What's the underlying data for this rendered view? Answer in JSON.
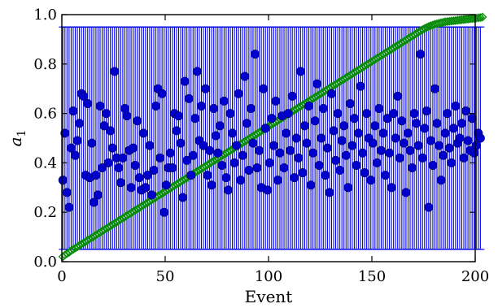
{
  "chart_data": {
    "type": "scatter",
    "xlabel": "Event",
    "ylabel": "a",
    "ylabel_subscript": "1",
    "xlim": [
      0,
      200
    ],
    "ylim": [
      0.0,
      1.0
    ],
    "x_ticks": [
      0,
      50,
      100,
      150,
      200
    ],
    "y_ticks": [
      0.0,
      0.2,
      0.4,
      0.6,
      0.8,
      1.0
    ],
    "x_tick_labels": [
      "0",
      "50",
      "100",
      "150",
      "200"
    ],
    "y_tick_labels": [
      "0.0",
      "0.2",
      "0.4",
      "0.6",
      "0.8",
      "1.0"
    ],
    "grid": false,
    "reference_lines": [
      0.05,
      0.95
    ],
    "series": [
      {
        "marker": "circle-filled",
        "color": "#0000cc",
        "error_color": "#0000ee",
        "values": [
          0.33,
          0.52,
          0.28,
          0.22,
          0.46,
          0.61,
          0.43,
          0.49,
          0.56,
          0.68,
          0.67,
          0.35,
          0.64,
          0.34,
          0.48,
          0.24,
          0.35,
          0.27,
          0.63,
          0.38,
          0.55,
          0.6,
          0.4,
          0.53,
          0.46,
          0.77,
          0.42,
          0.38,
          0.32,
          0.42,
          0.62,
          0.59,
          0.45,
          0.3,
          0.46,
          0.39,
          0.57,
          0.34,
          0.29,
          0.52,
          0.3,
          0.35,
          0.47,
          0.27,
          0.37,
          0.63,
          0.7,
          0.42,
          0.68,
          0.2,
          0.31,
          0.38,
          0.44,
          0.38,
          0.6,
          0.53,
          0.59,
          0.48,
          0.26,
          0.73,
          0.41,
          0.66,
          0.35,
          0.43,
          0.58,
          0.77,
          0.49,
          0.63,
          0.47,
          0.7,
          0.35,
          0.45,
          0.31,
          0.62,
          0.51,
          0.44,
          0.55,
          0.39,
          0.65,
          0.34,
          0.29,
          0.6,
          0.52,
          0.4,
          0.47,
          0.68,
          0.33,
          0.43,
          0.75,
          0.56,
          0.37,
          0.62,
          0.48,
          0.84,
          0.38,
          0.45,
          0.3,
          0.7,
          0.54,
          0.29,
          0.4,
          0.58,
          0.47,
          0.65,
          0.33,
          0.44,
          0.59,
          0.38,
          0.52,
          0.6,
          0.45,
          0.67,
          0.34,
          0.5,
          0.42,
          0.77,
          0.36,
          0.55,
          0.48,
          0.63,
          0.31,
          0.44,
          0.57,
          0.72,
          0.39,
          0.5,
          0.62,
          0.35,
          0.46,
          0.28,
          0.68,
          0.53,
          0.41,
          0.6,
          0.37,
          0.49,
          0.55,
          0.43,
          0.3,
          0.64,
          0.47,
          0.58,
          0.39,
          0.52,
          0.71,
          0.44,
          0.36,
          0.6,
          0.5,
          0.33,
          0.48,
          0.55,
          0.4,
          0.62,
          0.45,
          0.52,
          0.35,
          0.58,
          0.44,
          0.3,
          0.6,
          0.5,
          0.67,
          0.42,
          0.57,
          0.48,
          0.28,
          0.52,
          0.45,
          0.38,
          0.6,
          0.56,
          0.47,
          0.84,
          0.42,
          0.54,
          0.61,
          0.22,
          0.49,
          0.39,
          0.7,
          0.56,
          0.47,
          0.33,
          0.43,
          0.52,
          0.6,
          0.46,
          0.4,
          0.54,
          0.63,
          0.48,
          0.5,
          0.56,
          0.42,
          0.61,
          0.49,
          0.45,
          0.58,
          0.44,
          0.47,
          0.52,
          0.5
        ]
      },
      {
        "marker": "diamond-open",
        "color": "#0a8a0a",
        "error_color": "#00aa00",
        "values": [
          0.02,
          0.027,
          0.033,
          0.038,
          0.045,
          0.05,
          0.055,
          0.06,
          0.066,
          0.071,
          0.076,
          0.081,
          0.087,
          0.092,
          0.097,
          0.102,
          0.108,
          0.113,
          0.118,
          0.124,
          0.129,
          0.134,
          0.139,
          0.145,
          0.15,
          0.155,
          0.16,
          0.166,
          0.171,
          0.176,
          0.181,
          0.187,
          0.192,
          0.197,
          0.203,
          0.208,
          0.213,
          0.218,
          0.224,
          0.229,
          0.234,
          0.239,
          0.245,
          0.25,
          0.255,
          0.26,
          0.266,
          0.271,
          0.276,
          0.281,
          0.287,
          0.292,
          0.297,
          0.303,
          0.308,
          0.313,
          0.318,
          0.324,
          0.329,
          0.334,
          0.339,
          0.345,
          0.35,
          0.355,
          0.36,
          0.366,
          0.371,
          0.376,
          0.381,
          0.387,
          0.392,
          0.397,
          0.403,
          0.408,
          0.413,
          0.418,
          0.424,
          0.429,
          0.434,
          0.439,
          0.445,
          0.45,
          0.455,
          0.46,
          0.466,
          0.471,
          0.476,
          0.481,
          0.487,
          0.492,
          0.497,
          0.503,
          0.508,
          0.513,
          0.518,
          0.524,
          0.529,
          0.534,
          0.539,
          0.545,
          0.55,
          0.555,
          0.56,
          0.566,
          0.571,
          0.576,
          0.581,
          0.587,
          0.592,
          0.597,
          0.603,
          0.608,
          0.613,
          0.618,
          0.624,
          0.629,
          0.634,
          0.639,
          0.645,
          0.65,
          0.655,
          0.66,
          0.666,
          0.671,
          0.676,
          0.681,
          0.687,
          0.692,
          0.697,
          0.703,
          0.708,
          0.713,
          0.718,
          0.724,
          0.729,
          0.734,
          0.739,
          0.745,
          0.75,
          0.755,
          0.76,
          0.766,
          0.771,
          0.776,
          0.781,
          0.787,
          0.792,
          0.797,
          0.803,
          0.808,
          0.813,
          0.818,
          0.824,
          0.829,
          0.834,
          0.839,
          0.845,
          0.85,
          0.855,
          0.86,
          0.866,
          0.871,
          0.876,
          0.881,
          0.887,
          0.892,
          0.897,
          0.903,
          0.908,
          0.913,
          0.918,
          0.924,
          0.929,
          0.934,
          0.939,
          0.944,
          0.948,
          0.952,
          0.955,
          0.958,
          0.961,
          0.963,
          0.965,
          0.967,
          0.969,
          0.971,
          0.972,
          0.973,
          0.974,
          0.975,
          0.976,
          0.977,
          0.978,
          0.979,
          0.98,
          0.981,
          0.982,
          0.983,
          0.984,
          0.985,
          0.986,
          0.987,
          0.988,
          0.99
        ]
      }
    ]
  }
}
